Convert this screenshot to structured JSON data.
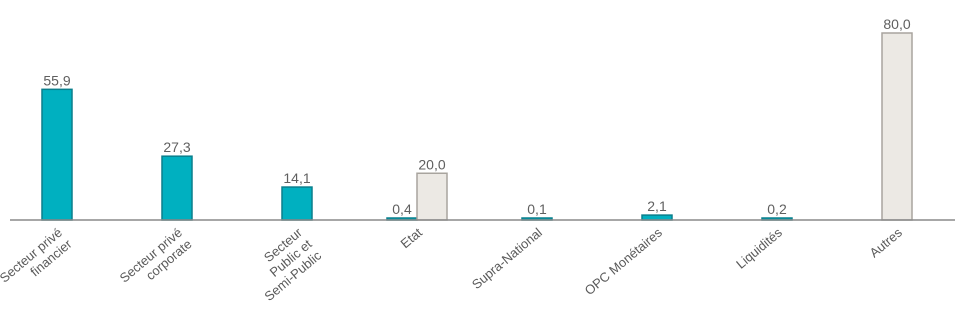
{
  "chart_data": {
    "type": "bar",
    "categories": [
      [
        "Secteur privé",
        "financier"
      ],
      [
        "Secteur privé",
        "corporate"
      ],
      [
        "Secteur",
        "Public et",
        "Semi-Public"
      ],
      [
        "Etat"
      ],
      [
        "Supra-National"
      ],
      [
        "OPC Monétaires"
      ],
      [
        "Liquidités"
      ],
      [
        "Autres"
      ]
    ],
    "series": [
      {
        "values": [
          55.9,
          27.3,
          14.1,
          0.4,
          0.1,
          2.1,
          0.2,
          null
        ],
        "color": "#00b0c0",
        "stroke": "#0a7f8c"
      },
      {
        "values": [
          null,
          null,
          null,
          20.0,
          null,
          null,
          null,
          80.0
        ],
        "color": "#ece9e4",
        "stroke": "#a8a49e"
      }
    ],
    "value_labels": [
      [
        "55,9",
        "27,3",
        "14,1",
        "0,4",
        "0,1",
        "2,1",
        "0,2",
        null
      ],
      [
        null,
        null,
        null,
        "20,0",
        null,
        null,
        null,
        "80,0"
      ]
    ],
    "ylim": [
      0,
      80
    ],
    "grid": false,
    "legend": "none"
  }
}
